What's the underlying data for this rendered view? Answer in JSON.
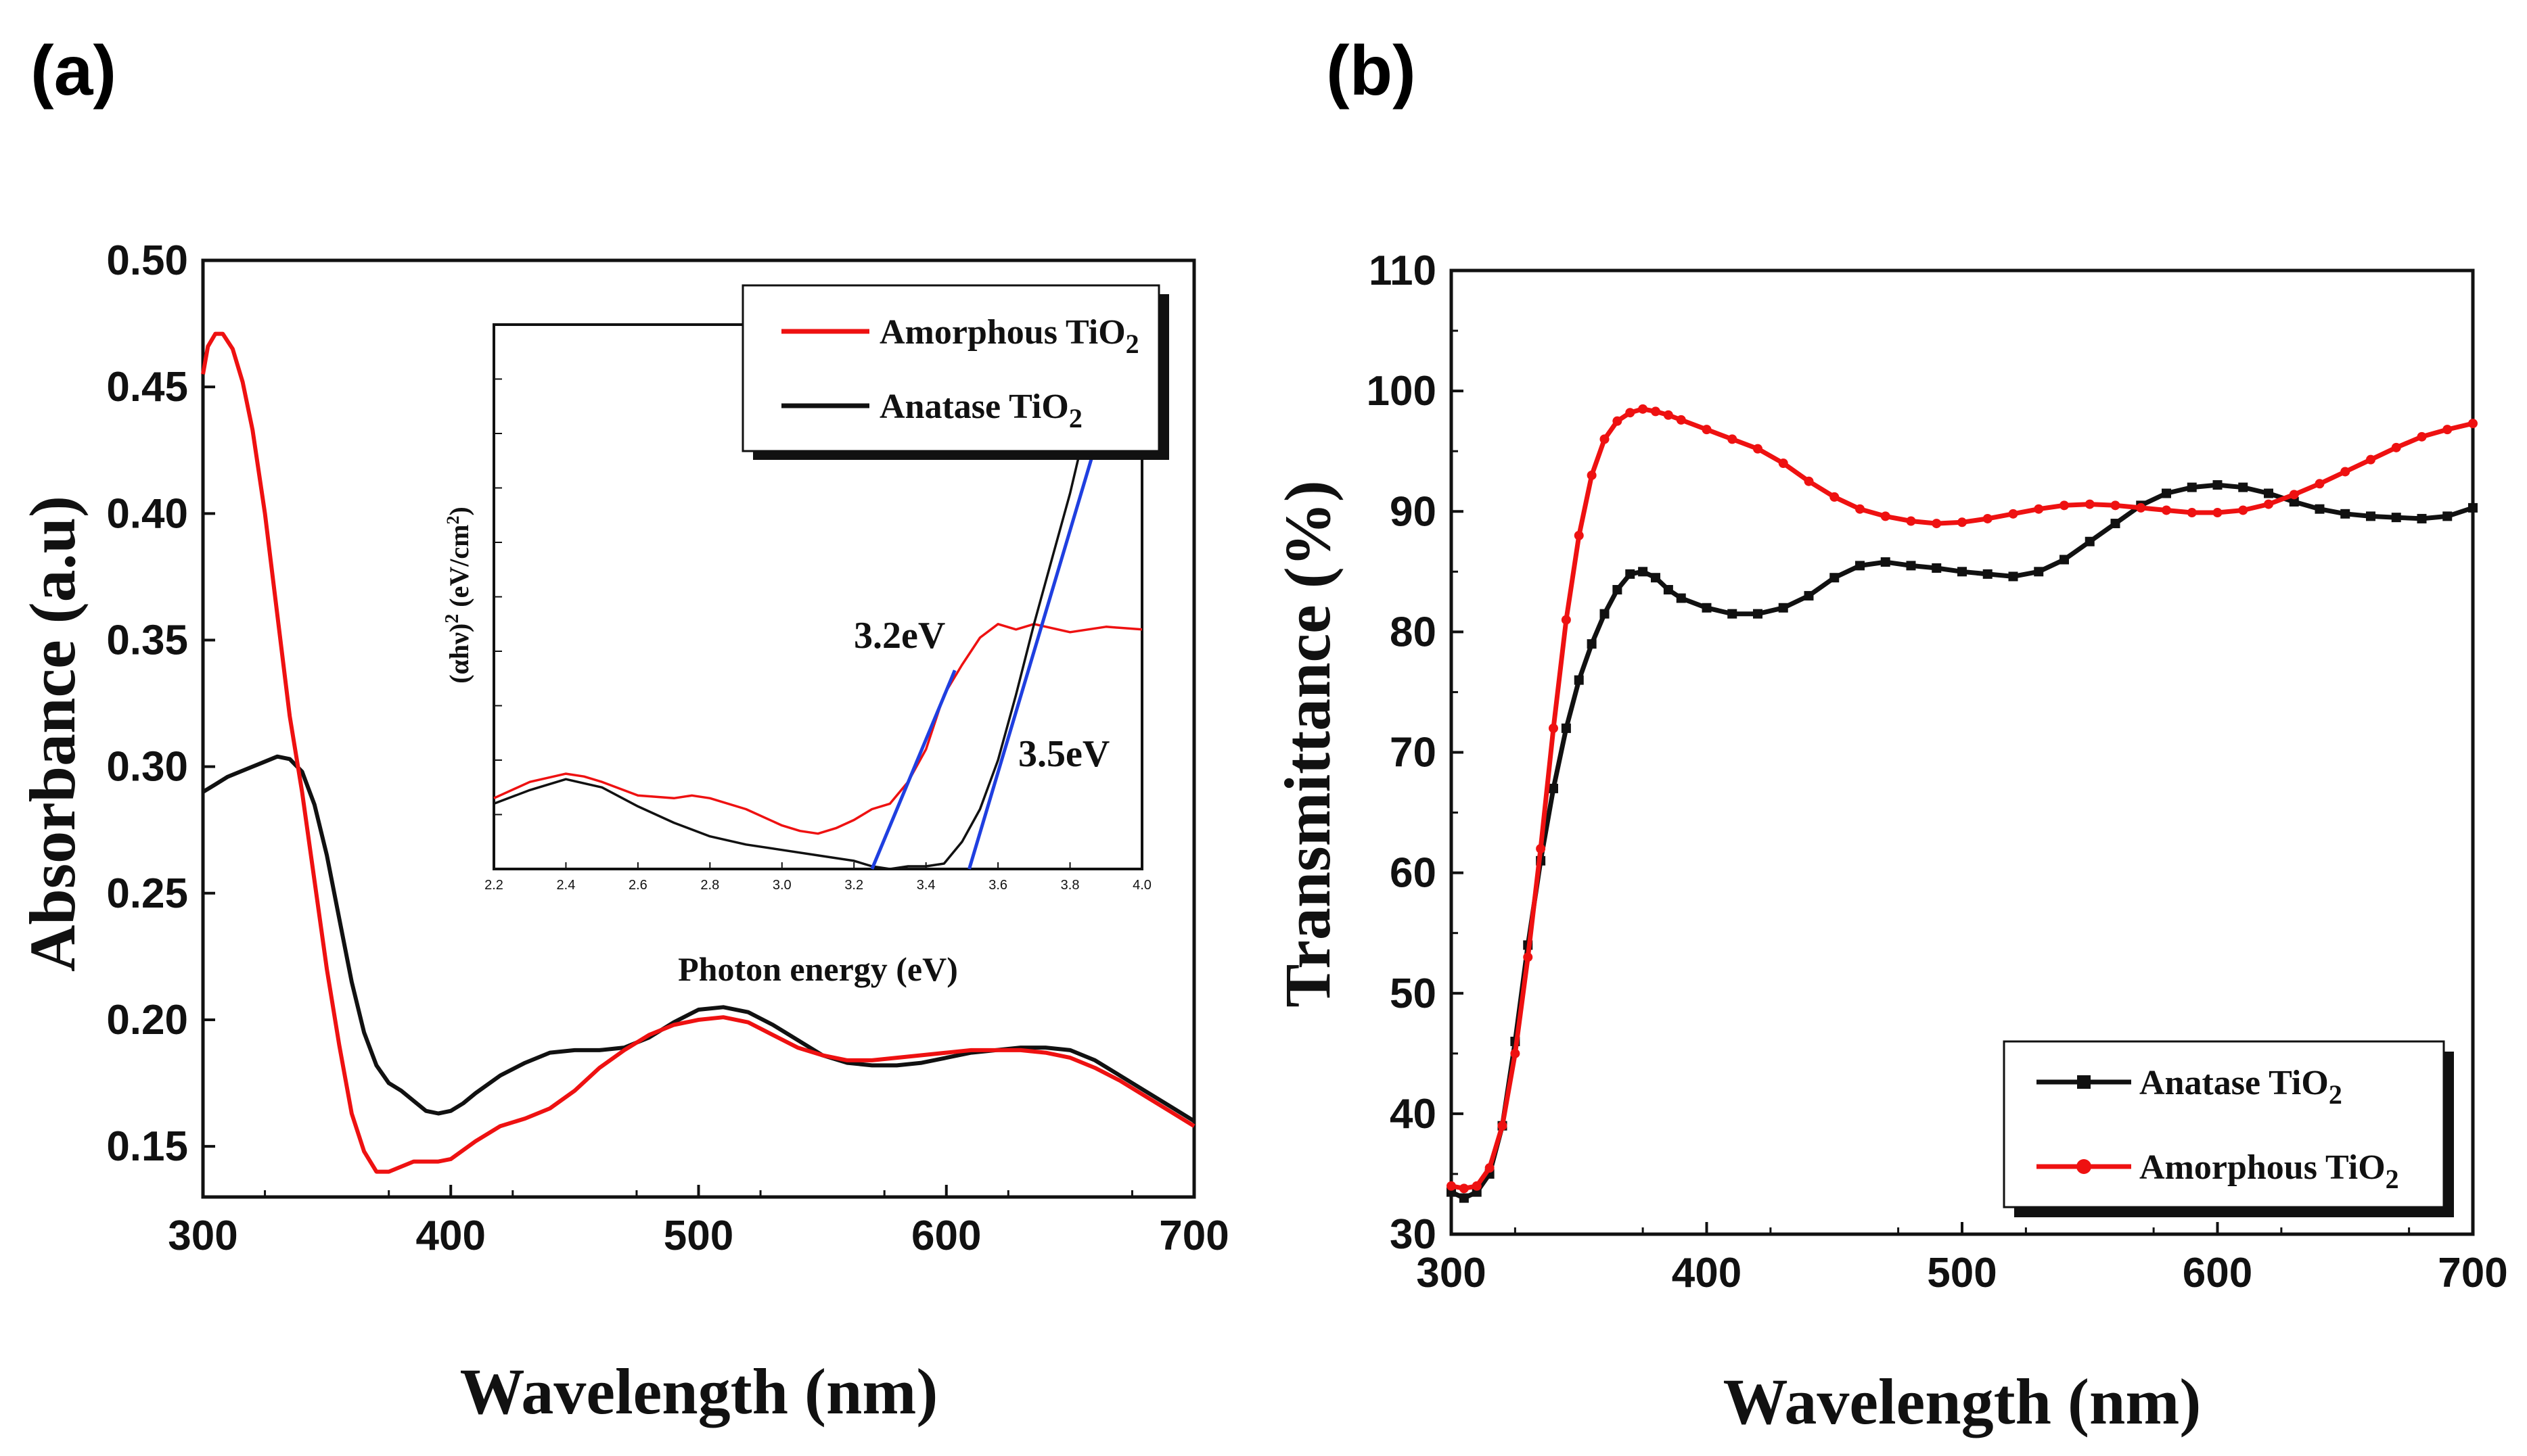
{
  "figure": {
    "panel_a_label": "(a)",
    "panel_b_label": "(b)"
  },
  "colors": {
    "red": "#ee1111",
    "black": "#111111",
    "blue": "#1f3fe0"
  },
  "chart_data": [
    {
      "id": "a",
      "type": "line",
      "xlabel": "Wavelength (nm)",
      "ylabel": "Absorbance (a.u)",
      "xlim": [
        300,
        700
      ],
      "ylim": [
        0.13,
        0.5
      ],
      "xticks": [
        300,
        400,
        500,
        600,
        700
      ],
      "yticks": [
        "0.15",
        "0.20",
        "0.25",
        "0.30",
        "0.35",
        "0.40",
        "0.45",
        "0.50"
      ],
      "legend": {
        "placement": "top-right",
        "entries": [
          {
            "name": "Amorphous TiO",
            "sub": "2",
            "color": "#ee1111"
          },
          {
            "name": "Anatase TiO",
            "sub": "2",
            "color": "#111111"
          }
        ]
      },
      "series": [
        {
          "name": "Amorphous TiO2",
          "color": "#ee1111",
          "x": [
            300,
            302,
            305,
            308,
            312,
            316,
            320,
            325,
            330,
            335,
            340,
            345,
            350,
            355,
            360,
            365,
            370,
            375,
            380,
            385,
            390,
            395,
            400,
            410,
            420,
            430,
            440,
            450,
            460,
            470,
            480,
            490,
            500,
            510,
            520,
            530,
            540,
            550,
            560,
            570,
            580,
            590,
            600,
            610,
            620,
            630,
            640,
            650,
            660,
            670,
            680,
            690,
            700
          ],
          "y": [
            0.455,
            0.466,
            0.471,
            0.471,
            0.465,
            0.452,
            0.433,
            0.4,
            0.36,
            0.32,
            0.29,
            0.255,
            0.22,
            0.19,
            0.163,
            0.148,
            0.14,
            0.14,
            0.142,
            0.144,
            0.144,
            0.144,
            0.145,
            0.152,
            0.158,
            0.161,
            0.165,
            0.172,
            0.181,
            0.188,
            0.194,
            0.198,
            0.2,
            0.201,
            0.199,
            0.194,
            0.189,
            0.186,
            0.184,
            0.184,
            0.185,
            0.186,
            0.187,
            0.188,
            0.188,
            0.188,
            0.187,
            0.185,
            0.181,
            0.176,
            0.17,
            0.164,
            0.158
          ]
        },
        {
          "name": "Anatase TiO2",
          "color": "#111111",
          "x": [
            300,
            305,
            310,
            315,
            320,
            325,
            330,
            335,
            340,
            345,
            350,
            355,
            360,
            365,
            370,
            375,
            380,
            385,
            390,
            395,
            400,
            405,
            410,
            420,
            430,
            440,
            450,
            460,
            470,
            480,
            490,
            500,
            510,
            520,
            530,
            540,
            550,
            560,
            570,
            580,
            590,
            600,
            610,
            620,
            630,
            640,
            650,
            660,
            670,
            680,
            690,
            700
          ],
          "y": [
            0.29,
            0.293,
            0.296,
            0.298,
            0.3,
            0.302,
            0.304,
            0.303,
            0.298,
            0.285,
            0.265,
            0.24,
            0.215,
            0.195,
            0.182,
            0.175,
            0.172,
            0.168,
            0.164,
            0.163,
            0.164,
            0.167,
            0.171,
            0.178,
            0.183,
            0.187,
            0.188,
            0.188,
            0.189,
            0.193,
            0.199,
            0.204,
            0.205,
            0.203,
            0.198,
            0.192,
            0.186,
            0.183,
            0.182,
            0.182,
            0.183,
            0.185,
            0.187,
            0.188,
            0.189,
            0.189,
            0.188,
            0.184,
            0.178,
            0.172,
            0.166,
            0.16
          ]
        }
      ],
      "inset": {
        "xlabel": "Photon energy (eV)",
        "ylabel_main": "(αhν)",
        "ylabel_sup": "2",
        "ylabel_units": " (eV/cm",
        "ylabel_units_sup": "2",
        "ylabel_close": ")",
        "xlim": [
          2.2,
          4.0
        ],
        "ylim": [
          0,
          10
        ],
        "xticks": [
          "2.2",
          "2.4",
          "2.6",
          "2.8",
          "3.0",
          "3.2",
          "3.4",
          "3.6",
          "3.8",
          "4.0"
        ],
        "annotations": [
          {
            "text": "3.2eV",
            "x": 3.22,
            "y": 4.3
          },
          {
            "text": "3.5eV",
            "x": 3.72,
            "y": 2.1
          }
        ],
        "series": [
          {
            "name": "Amorphous TiO2",
            "color": "#ee1111",
            "x": [
              2.2,
              2.3,
              2.4,
              2.45,
              2.5,
              2.6,
              2.7,
              2.75,
              2.8,
              2.9,
              3.0,
              3.05,
              3.1,
              3.15,
              3.2,
              3.25,
              3.3,
              3.35,
              3.4,
              3.45,
              3.5,
              3.55,
              3.6,
              3.65,
              3.7,
              3.8,
              3.9,
              4.0
            ],
            "y": [
              1.3,
              1.6,
              1.75,
              1.7,
              1.6,
              1.35,
              1.3,
              1.35,
              1.3,
              1.1,
              0.8,
              0.7,
              0.65,
              0.75,
              0.9,
              1.1,
              1.2,
              1.6,
              2.2,
              3.2,
              3.75,
              4.25,
              4.5,
              4.4,
              4.5,
              4.35,
              4.45,
              4.4
            ]
          },
          {
            "name": "Anatase TiO2",
            "color": "#111111",
            "x": [
              2.2,
              2.3,
              2.4,
              2.5,
              2.6,
              2.7,
              2.8,
              2.9,
              3.0,
              3.1,
              3.2,
              3.25,
              3.3,
              3.35,
              3.4,
              3.45,
              3.5,
              3.55,
              3.6,
              3.65,
              3.7,
              3.75,
              3.8,
              3.85,
              3.9
            ],
            "y": [
              1.2,
              1.45,
              1.65,
              1.5,
              1.15,
              0.85,
              0.6,
              0.45,
              0.35,
              0.25,
              0.15,
              0.05,
              0.0,
              0.05,
              0.05,
              0.1,
              0.5,
              1.1,
              2.0,
              3.2,
              4.5,
              5.7,
              6.9,
              8.3,
              9.9
            ]
          }
        ],
        "fit_lines": [
          {
            "color": "#1f3fe0",
            "x": [
              3.25,
              3.48
            ],
            "y": [
              0.0,
              3.65
            ]
          },
          {
            "color": "#1f3fe0",
            "x": [
              3.52,
              3.86
            ],
            "y": [
              0.0,
              7.55
            ]
          }
        ]
      }
    },
    {
      "id": "b",
      "type": "line",
      "xlabel": "Wavelength (nm)",
      "ylabel": "Transmittance (%)",
      "xlim": [
        300,
        700
      ],
      "ylim": [
        30,
        110
      ],
      "xticks": [
        300,
        400,
        500,
        600,
        700
      ],
      "yticks": [
        30,
        40,
        50,
        60,
        70,
        80,
        90,
        100,
        110
      ],
      "legend": {
        "placement": "bottom-right",
        "entries": [
          {
            "name": "Anatase TiO",
            "sub": "2",
            "color": "#111111"
          },
          {
            "name": "Amorphous TiO",
            "sub": "2",
            "color": "#ee1111"
          }
        ]
      },
      "series": [
        {
          "name": "Anatase TiO2",
          "color": "#111111",
          "x": [
            300,
            305,
            310,
            315,
            320,
            325,
            330,
            335,
            340,
            345,
            350,
            355,
            360,
            365,
            370,
            375,
            380,
            385,
            390,
            400,
            410,
            420,
            430,
            440,
            450,
            460,
            470,
            480,
            490,
            500,
            510,
            520,
            530,
            540,
            550,
            560,
            570,
            580,
            590,
            600,
            610,
            620,
            630,
            640,
            650,
            660,
            670,
            680,
            690,
            700
          ],
          "y": [
            33.5,
            33.0,
            33.5,
            35.0,
            39.0,
            46.0,
            54.0,
            61.0,
            67.0,
            72.0,
            76.0,
            79.0,
            81.5,
            83.5,
            84.8,
            85.0,
            84.5,
            83.5,
            82.8,
            82.0,
            81.5,
            81.5,
            82.0,
            83.0,
            84.5,
            85.5,
            85.8,
            85.5,
            85.3,
            85.0,
            84.8,
            84.6,
            85.0,
            86.0,
            87.5,
            89.0,
            90.5,
            91.5,
            92.0,
            92.2,
            92.0,
            91.5,
            90.8,
            90.2,
            89.8,
            89.6,
            89.5,
            89.4,
            89.6,
            90.3
          ]
        },
        {
          "name": "Amorphous TiO2",
          "color": "#ee1111",
          "x": [
            300,
            305,
            310,
            315,
            320,
            325,
            330,
            335,
            340,
            345,
            350,
            355,
            360,
            365,
            370,
            375,
            380,
            385,
            390,
            400,
            410,
            420,
            430,
            440,
            450,
            460,
            470,
            480,
            490,
            500,
            510,
            520,
            530,
            540,
            550,
            560,
            570,
            580,
            590,
            600,
            610,
            620,
            630,
            640,
            650,
            660,
            670,
            680,
            690,
            700
          ],
          "y": [
            34.0,
            33.8,
            34.0,
            35.5,
            39.0,
            45.0,
            53.0,
            62.0,
            72.0,
            81.0,
            88.0,
            93.0,
            96.0,
            97.5,
            98.2,
            98.5,
            98.3,
            98.0,
            97.6,
            96.8,
            96.0,
            95.2,
            94.0,
            92.5,
            91.2,
            90.2,
            89.6,
            89.2,
            89.0,
            89.1,
            89.4,
            89.8,
            90.2,
            90.5,
            90.6,
            90.5,
            90.3,
            90.1,
            89.9,
            89.9,
            90.1,
            90.6,
            91.4,
            92.3,
            93.3,
            94.3,
            95.3,
            96.2,
            96.8,
            97.3
          ]
        }
      ]
    }
  ]
}
